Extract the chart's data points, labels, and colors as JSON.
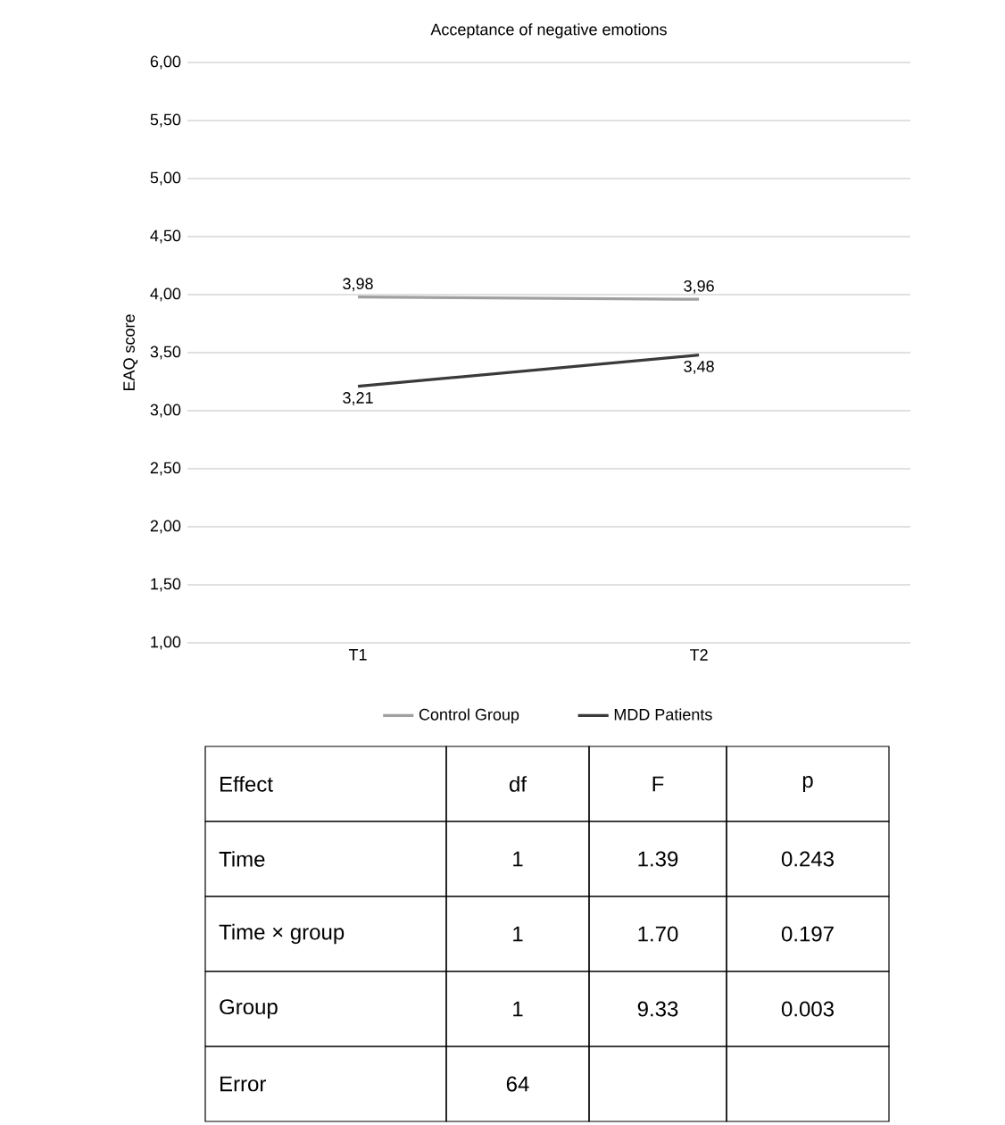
{
  "chart_data": {
    "type": "line",
    "title": "Acceptance of negative emotions",
    "ylabel": "EAQ score",
    "categories": [
      "T1",
      "T2"
    ],
    "series": [
      {
        "name": "Control Group",
        "color": "#a0a0a0",
        "values": [
          3.98,
          3.96
        ],
        "value_labels": [
          "3,98",
          "3,96"
        ]
      },
      {
        "name": "MDD Patients",
        "color": "#3a3a3a",
        "values": [
          3.21,
          3.48
        ],
        "value_labels": [
          "3,21",
          "3,48"
        ]
      }
    ],
    "ylim": [
      1,
      6
    ],
    "yticks": [
      {
        "value": 1,
        "label": "1,00"
      },
      {
        "value": 1.5,
        "label": "1,50"
      },
      {
        "value": 2,
        "label": "2,00"
      },
      {
        "value": 2.5,
        "label": "2,50"
      },
      {
        "value": 3,
        "label": "3,00"
      },
      {
        "value": 3.5,
        "label": "3,50"
      },
      {
        "value": 4,
        "label": "4,00"
      },
      {
        "value": 4.5,
        "label": "4,50"
      },
      {
        "value": 5,
        "label": "5,00"
      },
      {
        "value": 5.5,
        "label": "5,50"
      },
      {
        "value": 6,
        "label": "6,00"
      }
    ],
    "grid": "y",
    "legend": "bottom",
    "marker": "none",
    "line_style": "solid",
    "annotations": [
      "Effect",
      "df",
      "F",
      "p",
      "Time",
      "1",
      "1.39",
      "0.243",
      "Time × group",
      "1",
      "1.70",
      "0.197",
      "Group",
      "1",
      "9.33",
      "0.003",
      "Error",
      "64"
    ]
  }
}
